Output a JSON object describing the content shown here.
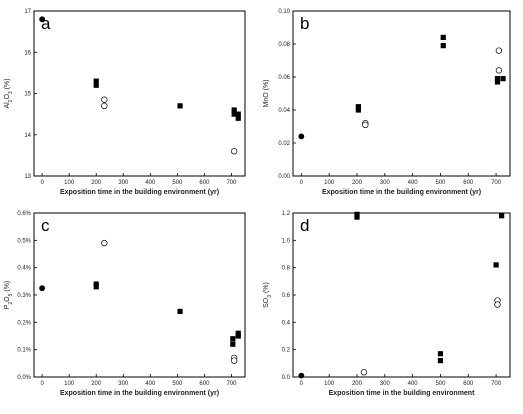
{
  "chart_data": [
    {
      "type": "scatter",
      "panel_label": "a",
      "xlabel": "Exposition time in the building environment (yr)",
      "ylabel": "Al2O3 (%)",
      "ylabel_parts": {
        "pre": "Al",
        "sub1": "2",
        "mid": "O",
        "sub2": "3",
        "post": " (%)"
      },
      "xlim": [
        -30,
        750
      ],
      "ylim": [
        13,
        17
      ],
      "xticks": [
        0,
        100,
        200,
        300,
        400,
        500,
        600,
        700
      ],
      "yticks": [
        13,
        14,
        15,
        16,
        17
      ],
      "ytick_labels": [
        "13",
        "14",
        "15",
        "16",
        "17"
      ],
      "series": [
        {
          "marker": "filled-circle",
          "points": [
            [
              0,
              16.8
            ]
          ]
        },
        {
          "marker": "filled-square",
          "points": [
            [
              200,
              15.2
            ],
            [
              200,
              15.3
            ],
            [
              510,
              14.7
            ],
            [
              710,
              14.6
            ],
            [
              710,
              14.5
            ],
            [
              725,
              14.5
            ],
            [
              725,
              14.4
            ]
          ]
        },
        {
          "marker": "open-circle",
          "points": [
            [
              230,
              14.85
            ],
            [
              230,
              14.7
            ],
            [
              710,
              13.6
            ]
          ]
        }
      ]
    },
    {
      "type": "scatter",
      "panel_label": "b",
      "xlabel": "Exposition time in the building environment (yr)",
      "ylabel": "MnO (%)",
      "ylabel_parts": {
        "pre": "MnO (%)",
        "sub1": "",
        "mid": "",
        "sub2": "",
        "post": ""
      },
      "xlim": [
        -30,
        750
      ],
      "ylim": [
        0,
        0.1
      ],
      "xticks": [
        0,
        100,
        200,
        300,
        400,
        500,
        600,
        700
      ],
      "yticks": [
        0,
        0.02,
        0.04,
        0.06,
        0.08,
        0.1
      ],
      "ytick_labels": [
        "0.00",
        "0.02",
        "0.04",
        "0.06",
        "0.08",
        "0.10"
      ],
      "series": [
        {
          "marker": "filled-circle",
          "points": [
            [
              0,
              0.024
            ]
          ]
        },
        {
          "marker": "filled-square",
          "points": [
            [
              205,
              0.042
            ],
            [
              205,
              0.04
            ],
            [
              510,
              0.084
            ],
            [
              510,
              0.079
            ],
            [
              705,
              0.059
            ],
            [
              705,
              0.057
            ],
            [
              725,
              0.059
            ]
          ]
        },
        {
          "marker": "open-circle",
          "points": [
            [
              230,
              0.032
            ],
            [
              230,
              0.031
            ],
            [
              710,
              0.076
            ],
            [
              710,
              0.064
            ]
          ]
        }
      ]
    },
    {
      "type": "scatter",
      "panel_label": "c",
      "xlabel": "Exposition time in the building environment (yr)",
      "ylabel": "P2O5 (%)",
      "ylabel_parts": {
        "pre": "P",
        "sub1": "2",
        "mid": "O",
        "sub2": "5",
        "post": " (%)"
      },
      "xlim": [
        -30,
        750
      ],
      "ylim": [
        0,
        0.6
      ],
      "xticks": [
        0,
        100,
        200,
        300,
        400,
        500,
        600,
        700
      ],
      "yticks": [
        0,
        0.1,
        0.2,
        0.3,
        0.4,
        0.5,
        0.6
      ],
      "ytick_labels": [
        "0.0%",
        "0.1%",
        "0.2%",
        "0.3%",
        "0.4%",
        "0.5%",
        "0.6%"
      ],
      "series": [
        {
          "marker": "filled-circle",
          "points": [
            [
              0,
              0.325
            ]
          ]
        },
        {
          "marker": "filled-square",
          "points": [
            [
              200,
              0.34
            ],
            [
              200,
              0.33
            ],
            [
              510,
              0.24
            ],
            [
              705,
              0.14
            ],
            [
              705,
              0.12
            ],
            [
              725,
              0.16
            ],
            [
              725,
              0.15
            ]
          ]
        },
        {
          "marker": "open-circle",
          "points": [
            [
              230,
              0.49
            ],
            [
              710,
              0.07
            ],
            [
              710,
              0.06
            ]
          ]
        }
      ]
    },
    {
      "type": "scatter",
      "panel_label": "d",
      "xlabel": "Exposition time in the building environment",
      "ylabel": "SO3 (%)",
      "ylabel_parts": {
        "pre": "SO",
        "sub1": "3",
        "mid": "",
        "sub2": "",
        "post": " (%)"
      },
      "xlim": [
        -30,
        750
      ],
      "ylim": [
        0,
        1.2
      ],
      "xticks": [
        0,
        100,
        200,
        300,
        400,
        500,
        600,
        700
      ],
      "yticks": [
        0,
        0.2,
        0.4,
        0.6,
        0.8,
        1.0,
        1.2
      ],
      "ytick_labels": [
        "0.0",
        "0.2",
        "0.4",
        "0.6",
        "0.8",
        "1.0",
        "1.2"
      ],
      "series": [
        {
          "marker": "filled-circle",
          "points": [
            [
              0,
              0.01
            ]
          ]
        },
        {
          "marker": "filled-square",
          "points": [
            [
              200,
              1.19
            ],
            [
              200,
              1.17
            ],
            [
              500,
              0.17
            ],
            [
              500,
              0.12
            ],
            [
              700,
              0.82
            ],
            [
              720,
              1.18
            ]
          ]
        },
        {
          "marker": "open-circle",
          "points": [
            [
              225,
              0.035
            ],
            [
              705,
              0.56
            ],
            [
              705,
              0.53
            ]
          ]
        }
      ]
    }
  ]
}
